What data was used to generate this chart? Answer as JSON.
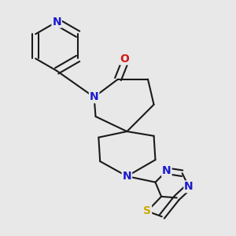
{
  "bg_color": "#e8e8e8",
  "bond_color": "#1a1a1a",
  "bond_width": 1.5,
  "atom_colors": {
    "N": "#1a1acc",
    "O": "#cc1a1a",
    "S": "#ccaa00",
    "C": "#1a1a1a"
  },
  "font_size_atom": 10,
  "fig_size": [
    3.0,
    3.0
  ],
  "dpi": 100
}
